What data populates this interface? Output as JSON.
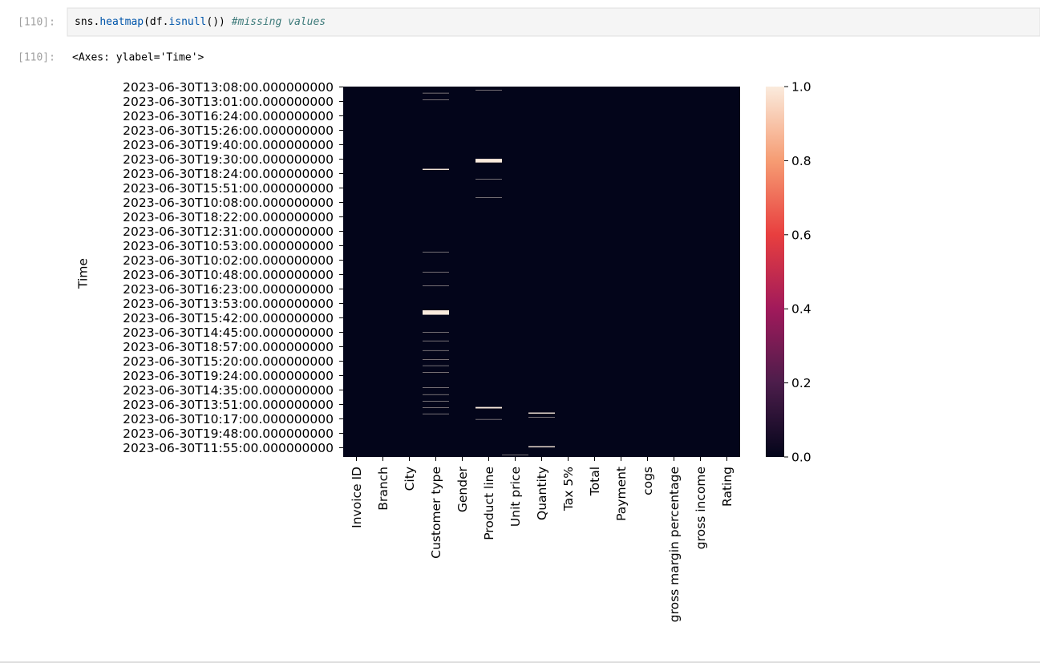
{
  "cell": {
    "in_prompt": "[110]:",
    "code_tokens": [
      {
        "text": "sns.",
        "color": "#000000"
      },
      {
        "text": "heatmap",
        "color": "#0055aa"
      },
      {
        "text": "(df.",
        "color": "#000000"
      },
      {
        "text": "isnull",
        "color": "#0055aa"
      },
      {
        "text": "())",
        "color": "#000000"
      },
      {
        "text": " #missing values",
        "color": "#3d7a7a",
        "italic": true
      }
    ],
    "out_prompt": "[110]:",
    "output_text": "<Axes: ylabel='Time'>"
  },
  "chart_data": {
    "type": "heatmap",
    "ylabel": "Time",
    "nrows": 1000,
    "categories": [
      "Invoice ID",
      "Branch",
      "City",
      "Customer type",
      "Gender",
      "Product line",
      "Unit price",
      "Quantity",
      "Tax 5%",
      "Total",
      "Payment",
      "cogs",
      "gross margin percentage",
      "gross income",
      "Rating"
    ],
    "row_labels": [
      "2023-06-30T13:08:00.000000000",
      "2023-06-30T13:01:00.000000000",
      "2023-06-30T16:24:00.000000000",
      "2023-06-30T15:26:00.000000000",
      "2023-06-30T19:40:00.000000000",
      "2023-06-30T19:30:00.000000000",
      "2023-06-30T18:24:00.000000000",
      "2023-06-30T15:51:00.000000000",
      "2023-06-30T10:08:00.000000000",
      "2023-06-30T18:22:00.000000000",
      "2023-06-30T12:31:00.000000000",
      "2023-06-30T10:53:00.000000000",
      "2023-06-30T10:02:00.000000000",
      "2023-06-30T10:48:00.000000000",
      "2023-06-30T16:23:00.000000000",
      "2023-06-30T13:53:00.000000000",
      "2023-06-30T15:42:00.000000000",
      "2023-06-30T14:45:00.000000000",
      "2023-06-30T18:57:00.000000000",
      "2023-06-30T15:20:00.000000000",
      "2023-06-30T19:24:00.000000000",
      "2023-06-30T14:35:00.000000000",
      "2023-06-30T13:51:00.000000000",
      "2023-06-30T10:17:00.000000000",
      "2023-06-30T19:48:00.000000000",
      "2023-06-30T11:55:00.000000000"
    ],
    "missing_rows": [
      [],
      [],
      [],
      [
        [
          17,
          17
        ],
        [
          35,
          35
        ],
        [
          222,
          224
        ],
        [
          446,
          446
        ],
        [
          500,
          500
        ],
        [
          537,
          537
        ],
        [
          604,
          615
        ],
        [
          663,
          663
        ],
        [
          686,
          686
        ],
        [
          712,
          712
        ],
        [
          736,
          736
        ],
        [
          753,
          753
        ],
        [
          771,
          771
        ],
        [
          812,
          812
        ],
        [
          831,
          831
        ],
        [
          849,
          849
        ],
        [
          866,
          866
        ],
        [
          883,
          883
        ]
      ],
      [],
      [
        [
          9,
          9
        ],
        [
          195,
          204
        ],
        [
          249,
          249
        ],
        [
          299,
          299
        ],
        [
          865,
          868
        ],
        [
          898,
          898
        ]
      ],
      [
        [
          994,
          994
        ]
      ],
      [
        [
          880,
          882
        ],
        [
          892,
          892
        ],
        [
          971,
          973
        ]
      ],
      [],
      [],
      [],
      [],
      [],
      [],
      []
    ],
    "colormap": [
      "#03051a",
      "#4c1d4b",
      "#a11a5b",
      "#e83f3f",
      "#f69c73",
      "#faebdd"
    ],
    "ylim": [
      0,
      1
    ],
    "yticks": [
      {
        "value": 0,
        "label": "0.0"
      },
      0.2,
      0.4,
      0.6,
      0.8,
      {
        "value": 1,
        "label": "1.0"
      }
    ]
  }
}
